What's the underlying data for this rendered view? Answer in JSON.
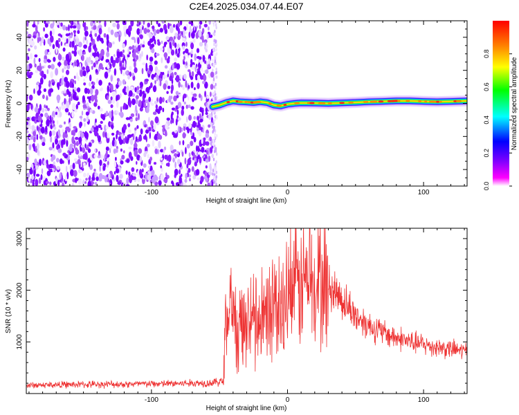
{
  "figure_title": "C2E4.2025.034.07.44.E07",
  "chart_data": [
    {
      "type": "heatmap",
      "title": "C2E4.2025.034.07.44.E07",
      "xlabel": "Height of straight line (km)",
      "ylabel": "Frequency (Hz)",
      "xlim": [
        -192,
        132
      ],
      "ylim": [
        -50,
        50
      ],
      "x_ticks": [
        -100,
        0,
        100
      ],
      "x_tick_labels": [
        "-100",
        "0",
        "100"
      ],
      "y_ticks": [
        -40,
        -20,
        0,
        20,
        40
      ],
      "y_tick_labels": [
        "-40",
        "-20",
        "0",
        "20",
        "40"
      ],
      "grid": false,
      "noise_region_x": [
        -192,
        -55
      ],
      "ridge": {
        "x": [
          -55,
          -50,
          -45,
          -40,
          -35,
          -30,
          -25,
          -20,
          -15,
          -10,
          -5,
          0,
          5,
          10,
          20,
          30,
          40,
          50,
          60,
          70,
          80,
          90,
          100,
          110,
          120,
          132
        ],
        "frequency_hz": [
          -2,
          -1,
          0.5,
          1.5,
          1,
          0.8,
          0.5,
          1,
          0.5,
          -1,
          -1.5,
          -0.5,
          0,
          0.3,
          0.2,
          0,
          0.3,
          0.6,
          1,
          1.2,
          1.5,
          1.5,
          1.2,
          1,
          1.2,
          1.5
        ]
      },
      "colorbar": {
        "label": "Normalized spectral amplitude",
        "range": [
          0,
          1
        ],
        "ticks": [
          0.0,
          0.2,
          0.4,
          0.6,
          0.8
        ],
        "tick_labels": [
          "0.0",
          "0.2",
          "0.4",
          "0.6",
          "0.8"
        ],
        "colors": [
          "#ffffff",
          "#ff00ff",
          "#8000ff",
          "#0000ff",
          "#00ffff",
          "#00ff00",
          "#ffff00",
          "#ff8000",
          "#ff0000"
        ]
      }
    },
    {
      "type": "line",
      "xlabel": "Height of straight line (km)",
      "ylabel": "SNR (10 * v/v)",
      "xlim": [
        -192,
        132
      ],
      "ylim": [
        0,
        3200
      ],
      "x_ticks": [
        -100,
        0,
        100
      ],
      "x_tick_labels": [
        "-100",
        "0",
        "100"
      ],
      "y_ticks": [
        1000,
        2000,
        3000
      ],
      "y_tick_labels": [
        "1000",
        "2000",
        "3000"
      ],
      "grid": false,
      "line_color": "#ee3333",
      "series": [
        {
          "x": [
            -192,
            -170,
            -150,
            -130,
            -110,
            -90,
            -70,
            -55,
            -47,
            -46,
            -42,
            -38,
            -34,
            -30,
            -26,
            -22,
            -18,
            -14,
            -10,
            -6,
            -2,
            2,
            6,
            10,
            14,
            18,
            22,
            26,
            30,
            34,
            38,
            42,
            46,
            50,
            55,
            60,
            65,
            70,
            75,
            80,
            85,
            90,
            95,
            100,
            105,
            110,
            115,
            120,
            125,
            132
          ],
          "y": [
            160,
            170,
            175,
            180,
            185,
            190,
            200,
            210,
            240,
            1400,
            1500,
            1250,
            1200,
            1350,
            1450,
            1450,
            1550,
            1550,
            1700,
            1600,
            1750,
            1950,
            2000,
            2150,
            2250,
            2100,
            2200,
            2150,
            2050,
            2000,
            1900,
            1750,
            1650,
            1500,
            1420,
            1320,
            1250,
            1180,
            1130,
            1080,
            1050,
            1000,
            970,
            950,
            920,
            900,
            880,
            860,
            840,
            820
          ]
        }
      ]
    }
  ]
}
